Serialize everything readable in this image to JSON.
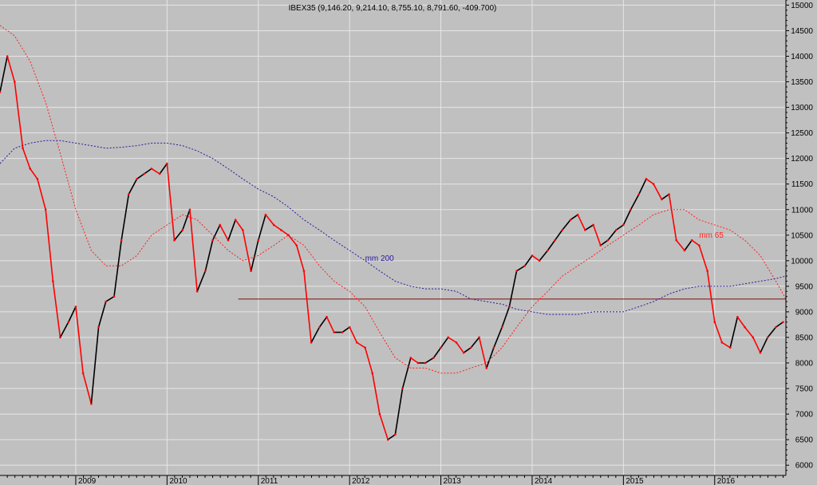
{
  "chart_data": {
    "type": "line",
    "title": "IBEX35 (9,146.20, 9,214.10, 8,755.10, 8,791.60, -409.700)",
    "xlabel": "",
    "ylabel": "",
    "ylim": [
      5800,
      15100
    ],
    "y_ticks": [
      6000,
      6500,
      7000,
      7500,
      8000,
      8500,
      9000,
      9500,
      10000,
      10500,
      11000,
      11500,
      12000,
      12500,
      13000,
      13500,
      14000,
      14500,
      15000
    ],
    "x_ticks": [
      "2009",
      "2010",
      "2011",
      "2012",
      "2013",
      "2014",
      "2015",
      "2016"
    ],
    "xlim": [
      2008.17,
      2016.78
    ],
    "grid": true,
    "colors": {
      "background": "#c0c0c0",
      "grid": "#e6e6e6",
      "price_down": "#ff0000",
      "price_up": "#000000",
      "ma65": "#ff2020",
      "ma200": "#2a1a9a",
      "support": "#7a1010"
    },
    "series": [
      {
        "name": "IBEX35",
        "x": [
          2008.17,
          2008.25,
          2008.33,
          2008.42,
          2008.5,
          2008.58,
          2008.67,
          2008.75,
          2008.83,
          2008.92,
          2009.0,
          2009.08,
          2009.17,
          2009.25,
          2009.33,
          2009.42,
          2009.5,
          2009.58,
          2009.67,
          2009.75,
          2009.83,
          2009.92,
          2010.0,
          2010.08,
          2010.17,
          2010.25,
          2010.33,
          2010.42,
          2010.5,
          2010.58,
          2010.67,
          2010.75,
          2010.83,
          2010.92,
          2011.0,
          2011.08,
          2011.17,
          2011.25,
          2011.33,
          2011.42,
          2011.5,
          2011.58,
          2011.67,
          2011.75,
          2011.83,
          2011.92,
          2012.0,
          2012.08,
          2012.17,
          2012.25,
          2012.33,
          2012.42,
          2012.5,
          2012.58,
          2012.67,
          2012.75,
          2012.83,
          2012.92,
          2013.0,
          2013.08,
          2013.17,
          2013.25,
          2013.33,
          2013.42,
          2013.5,
          2013.58,
          2013.67,
          2013.75,
          2013.83,
          2013.92,
          2014.0,
          2014.08,
          2014.17,
          2014.25,
          2014.33,
          2014.42,
          2014.5,
          2014.58,
          2014.67,
          2014.75,
          2014.83,
          2014.92,
          2015.0,
          2015.08,
          2015.17,
          2015.25,
          2015.33,
          2015.42,
          2015.5,
          2015.58,
          2015.67,
          2015.75,
          2015.83,
          2015.92,
          2016.0,
          2016.08,
          2016.17,
          2016.25,
          2016.33,
          2016.42,
          2016.5,
          2016.58,
          2016.67,
          2016.75
        ],
        "values": [
          13300,
          14000,
          13500,
          12200,
          11800,
          11600,
          11000,
          9600,
          8500,
          8800,
          9100,
          7800,
          7200,
          8700,
          9200,
          9300,
          10400,
          11300,
          11600,
          11700,
          11800,
          11700,
          11900,
          10400,
          10600,
          11000,
          9400,
          9800,
          10400,
          10700,
          10400,
          10800,
          10600,
          9800,
          10400,
          10900,
          10700,
          10600,
          10500,
          10300,
          9800,
          8400,
          8700,
          8900,
          8600,
          8600,
          8700,
          8400,
          8300,
          7800,
          7000,
          6500,
          6600,
          7500,
          8100,
          8000,
          8000,
          8100,
          8300,
          8500,
          8400,
          8200,
          8300,
          8500,
          7900,
          8300,
          8700,
          9100,
          9800,
          9900,
          10100,
          10000,
          10200,
          10400,
          10600,
          10800,
          10900,
          10600,
          10700,
          10300,
          10400,
          10600,
          10700,
          11000,
          11300,
          11600,
          11500,
          11200,
          11300,
          10400,
          10200,
          10400,
          10300,
          9800,
          8800,
          8400,
          8300,
          8900,
          8700,
          8500,
          8200,
          8500,
          8700,
          8800
        ]
      },
      {
        "name": "mm 65",
        "x": [
          2008.17,
          2008.33,
          2008.5,
          2008.67,
          2008.83,
          2009.0,
          2009.17,
          2009.33,
          2009.5,
          2009.67,
          2009.83,
          2010.0,
          2010.17,
          2010.33,
          2010.5,
          2010.67,
          2010.83,
          2011.0,
          2011.17,
          2011.33,
          2011.5,
          2011.67,
          2011.83,
          2012.0,
          2012.17,
          2012.33,
          2012.5,
          2012.67,
          2012.83,
          2013.0,
          2013.17,
          2013.33,
          2013.5,
          2013.67,
          2013.83,
          2014.0,
          2014.17,
          2014.33,
          2014.5,
          2014.67,
          2014.83,
          2015.0,
          2015.17,
          2015.33,
          2015.5,
          2015.67,
          2015.83,
          2016.0,
          2016.17,
          2016.33,
          2016.5,
          2016.67,
          2016.78
        ],
        "values": [
          14600,
          14400,
          13900,
          13100,
          12100,
          11000,
          10200,
          9900,
          9900,
          10100,
          10500,
          10700,
          10900,
          10800,
          10500,
          10200,
          10000,
          10100,
          10300,
          10500,
          10300,
          9900,
          9600,
          9400,
          9100,
          8600,
          8100,
          7900,
          7900,
          7800,
          7800,
          7900,
          8000,
          8300,
          8700,
          9100,
          9400,
          9700,
          9900,
          10100,
          10300,
          10500,
          10700,
          10900,
          11000,
          11000,
          10800,
          10700,
          10600,
          10400,
          10100,
          9600,
          9250
        ]
      },
      {
        "name": "mm 200",
        "x": [
          2008.17,
          2008.33,
          2008.5,
          2008.67,
          2008.83,
          2009.0,
          2009.17,
          2009.33,
          2009.5,
          2009.67,
          2009.83,
          2010.0,
          2010.17,
          2010.33,
          2010.5,
          2010.67,
          2010.83,
          2011.0,
          2011.17,
          2011.33,
          2011.5,
          2011.67,
          2011.83,
          2012.0,
          2012.17,
          2012.33,
          2012.5,
          2012.67,
          2012.83,
          2013.0,
          2013.17,
          2013.33,
          2013.5,
          2013.67,
          2013.83,
          2014.0,
          2014.17,
          2014.33,
          2014.5,
          2014.67,
          2014.83,
          2015.0,
          2015.17,
          2015.33,
          2015.5,
          2015.67,
          2015.83,
          2016.0,
          2016.17,
          2016.33,
          2016.5,
          2016.67,
          2016.78
        ],
        "values": [
          11900,
          12200,
          12300,
          12350,
          12350,
          12300,
          12250,
          12200,
          12220,
          12250,
          12300,
          12300,
          12250,
          12150,
          12000,
          11800,
          11600,
          11400,
          11250,
          11050,
          10800,
          10600,
          10400,
          10200,
          10000,
          9800,
          9600,
          9500,
          9450,
          9450,
          9400,
          9250,
          9200,
          9150,
          9050,
          9000,
          8950,
          8950,
          8950,
          9000,
          9000,
          9000,
          9100,
          9200,
          9350,
          9450,
          9500,
          9500,
          9500,
          9550,
          9600,
          9650,
          9700
        ]
      },
      {
        "name": "support",
        "x": [
          2010.78,
          2016.78
        ],
        "values": [
          9250,
          9250
        ]
      }
    ],
    "annotations": [
      {
        "text": "mm 200",
        "x": 2012.17,
        "y": 10000
      },
      {
        "text": "mm 65",
        "x": 2015.83,
        "y": 10450
      }
    ]
  }
}
